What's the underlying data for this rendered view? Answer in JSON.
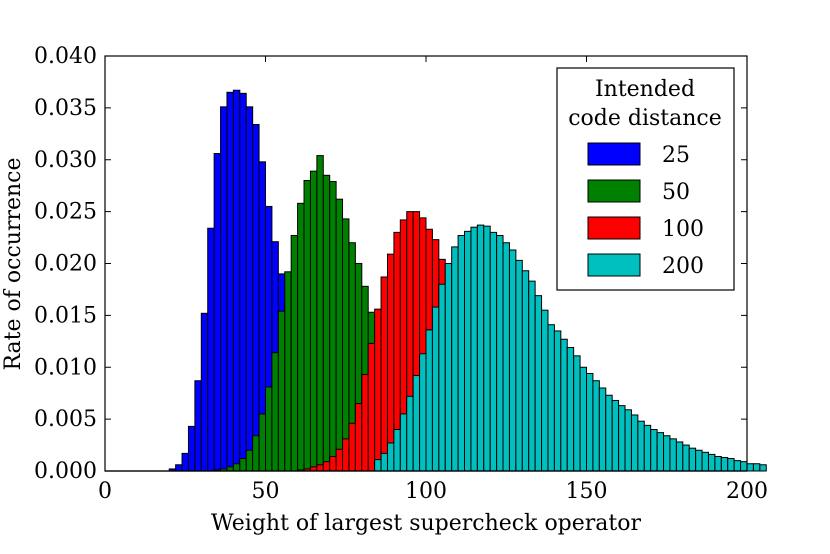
{
  "chart_data": {
    "type": "histogram",
    "title": "",
    "xlabel": "Weight of largest supercheck operator",
    "ylabel": "Rate of occurrence",
    "xlim": [
      0,
      200
    ],
    "ylim": [
      0,
      0.04
    ],
    "x_ticks": [
      0,
      50,
      100,
      150,
      200
    ],
    "x_tick_labels": [
      "0",
      "50",
      "100",
      "150",
      "200"
    ],
    "y_ticks": [
      0,
      0.005,
      0.01,
      0.015,
      0.02,
      0.025,
      0.03,
      0.035,
      0.04
    ],
    "y_tick_labels": [
      "0.000",
      "0.005",
      "0.010",
      "0.015",
      "0.020",
      "0.025",
      "0.030",
      "0.035",
      "0.040"
    ],
    "bin_width": 2,
    "grid": false,
    "legend": {
      "title_lines": [
        "Intended",
        "code distance"
      ],
      "placement": "top-right",
      "entries": [
        "25",
        "50",
        "100",
        "200"
      ]
    },
    "series": [
      {
        "name": "25",
        "color": "#0000ff",
        "start": 20,
        "values": [
          0.0002,
          0.0006,
          0.0017,
          0.0043,
          0.0087,
          0.0152,
          0.0234,
          0.0306,
          0.0351,
          0.0365,
          0.0367,
          0.0364,
          0.0351,
          0.0334,
          0.0298,
          0.0255,
          0.0221,
          0.019,
          0.0159,
          0.0139,
          0.0118,
          0.0095,
          0.0079,
          0.0063,
          0.005,
          0.0041,
          0.003,
          0.0023,
          0.0017,
          0.0013,
          0.0009,
          0.0007,
          0.0005,
          0.0003,
          0.0002
        ]
      },
      {
        "name": "50",
        "color": "#008000",
        "start": 34,
        "values": [
          0.0001,
          0.0002,
          0.0004,
          0.0007,
          0.0012,
          0.002,
          0.0034,
          0.0055,
          0.0081,
          0.0114,
          0.0154,
          0.0192,
          0.0227,
          0.0258,
          0.028,
          0.0289,
          0.0304,
          0.0285,
          0.0279,
          0.0262,
          0.0243,
          0.022,
          0.02,
          0.0178,
          0.0153,
          0.0131,
          0.0109,
          0.0088,
          0.007,
          0.0053,
          0.004,
          0.003,
          0.0022,
          0.0015,
          0.001,
          0.0006,
          0.0004,
          0.0002,
          0.0001
        ]
      },
      {
        "name": "100",
        "color": "#ff0000",
        "start": 60,
        "values": [
          0.0001,
          0.0002,
          0.0004,
          0.0006,
          0.0009,
          0.0014,
          0.0021,
          0.0031,
          0.0046,
          0.0065,
          0.0093,
          0.0123,
          0.0156,
          0.0187,
          0.0209,
          0.023,
          0.0242,
          0.025,
          0.025,
          0.0244,
          0.0233,
          0.0223,
          0.0204,
          0.0182,
          0.016,
          0.0141,
          0.0119,
          0.0097,
          0.0079,
          0.0062,
          0.0048,
          0.0037,
          0.0027,
          0.002,
          0.0014,
          0.001,
          0.0007,
          0.0005,
          0.0003,
          0.0002,
          0.0001
        ]
      },
      {
        "name": "200",
        "color": "#00bfbf",
        "start": 84,
        "values": [
          0.0011,
          0.0017,
          0.0027,
          0.004,
          0.0055,
          0.0072,
          0.0092,
          0.0113,
          0.0136,
          0.0158,
          0.018,
          0.02,
          0.0216,
          0.0227,
          0.0231,
          0.0235,
          0.0237,
          0.0236,
          0.023,
          0.0227,
          0.022,
          0.0213,
          0.0203,
          0.0193,
          0.0183,
          0.0169,
          0.0155,
          0.0141,
          0.0135,
          0.0127,
          0.0119,
          0.0111,
          0.01,
          0.0094,
          0.0087,
          0.008,
          0.0073,
          0.0068,
          0.0063,
          0.0059,
          0.0054,
          0.0048,
          0.0044,
          0.004,
          0.0037,
          0.0034,
          0.0031,
          0.0028,
          0.0025,
          0.0022,
          0.002,
          0.0018,
          0.0016,
          0.0014,
          0.0013,
          0.0012,
          0.001,
          0.0009,
          0.0007,
          0.0007,
          0.0006
        ]
      }
    ]
  }
}
